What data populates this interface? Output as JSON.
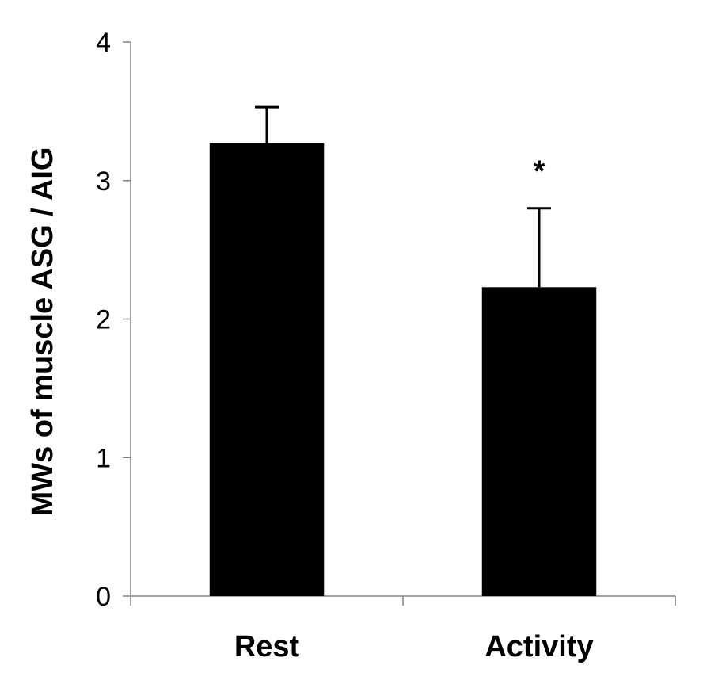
{
  "chart_data": {
    "type": "bar",
    "title": "",
    "xlabel": "",
    "ylabel": "MWs of muscle ASG / AIG",
    "categories": [
      "Rest",
      "Activity"
    ],
    "values": [
      3.27,
      2.23
    ],
    "error_upper": [
      0.26,
      0.57
    ],
    "annotations": [
      "",
      "*"
    ],
    "ylim": [
      0,
      4
    ],
    "yticks": [
      "0",
      "1",
      "2",
      "3",
      "4"
    ],
    "grid": false,
    "bar_color": "#000000"
  }
}
